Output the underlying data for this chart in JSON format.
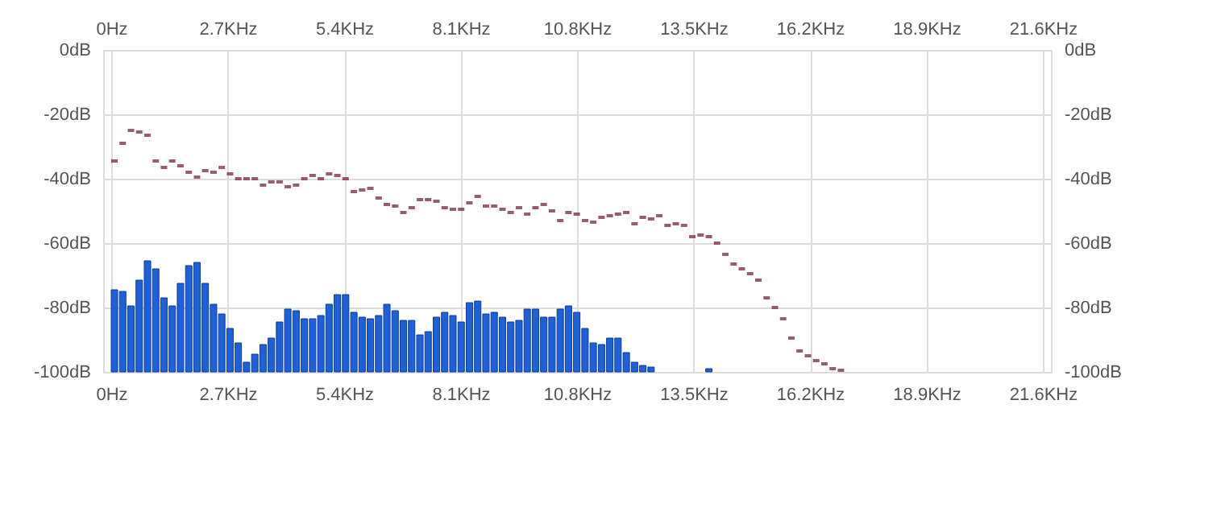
{
  "chart_data": {
    "type": "bar",
    "series": [
      {
        "color": "#1f5fd8",
        "x": [
          0.075,
          0.266,
          0.458,
          0.649,
          0.841,
          1.032,
          1.223,
          1.415,
          1.606,
          1.798,
          1.989,
          2.18,
          2.372,
          2.563,
          2.755,
          2.946,
          3.137,
          3.329,
          3.52,
          3.712,
          3.903,
          4.094,
          4.286,
          4.477,
          4.669,
          4.86,
          5.051,
          5.243,
          5.434,
          5.626,
          5.817,
          6.008,
          6.2,
          6.391,
          6.583,
          6.774,
          6.965,
          7.157,
          7.348,
          7.54,
          7.731,
          7.922,
          8.114,
          8.305,
          8.497,
          8.688,
          8.879,
          9.071,
          9.262,
          9.454,
          9.645,
          9.836,
          10.028,
          10.219,
          10.411,
          10.602,
          10.793,
          10.985,
          11.176,
          11.368,
          11.559,
          11.75,
          11.942,
          12.133,
          12.325,
          12.516,
          13.856
        ],
        "values": [
          25.5,
          25,
          20.5,
          28.5,
          34.5,
          32,
          23,
          20.5,
          27.5,
          33,
          34,
          27.5,
          21,
          18,
          13.5,
          9,
          3,
          5.5,
          8.5,
          10.5,
          15.5,
          19.5,
          19,
          16.5,
          16.5,
          17.5,
          21,
          24,
          24,
          18.5,
          17,
          16.5,
          17.5,
          21,
          19,
          16,
          16,
          11.5,
          12.5,
          17,
          18.5,
          17.5,
          15.5,
          21.5,
          22,
          18,
          18.5,
          17,
          15.5,
          16,
          19.5,
          19.5,
          17,
          17,
          19.5,
          20.5,
          18.5,
          13.5,
          9,
          8.5,
          10.5,
          10.5,
          6,
          3,
          2,
          1.5,
          1
        ],
        "base": [
          -100,
          -100,
          -100,
          -100,
          -100,
          -100,
          -100,
          -100,
          -100,
          -100,
          -100,
          -100,
          -100,
          -100,
          -100,
          -100,
          -100,
          -100,
          -100,
          -100,
          -100,
          -100,
          -100,
          -100,
          -100,
          -100,
          -100,
          -100,
          -100,
          -100,
          -100,
          -100,
          -100,
          -100,
          -100,
          -100,
          -100,
          -100,
          -100,
          -100,
          -100,
          -100,
          -100,
          -100,
          -100,
          -100,
          -100,
          -100,
          -100,
          -100,
          -100,
          -100,
          -100,
          -100,
          -100,
          -100,
          -100,
          -100,
          -100,
          -100,
          -100,
          -100,
          -100,
          -100,
          -100,
          -100,
          -100
        ]
      },
      {
        "type": "scatter",
        "color": "#6b1a2e",
        "x": [
          0.075,
          0.266,
          0.458,
          0.649,
          0.841,
          1.032,
          1.223,
          1.415,
          1.606,
          1.798,
          1.989,
          2.18,
          2.372,
          2.563,
          2.755,
          2.946,
          3.137,
          3.329,
          3.52,
          3.712,
          3.903,
          4.094,
          4.286,
          4.477,
          4.669,
          4.86,
          5.051,
          5.243,
          5.434,
          5.626,
          5.817,
          6.008,
          6.2,
          6.391,
          6.583,
          6.774,
          6.965,
          7.157,
          7.348,
          7.54,
          7.731,
          7.922,
          8.114,
          8.305,
          8.497,
          8.688,
          8.879,
          9.071,
          9.262,
          9.454,
          9.645,
          9.836,
          10.028,
          10.219,
          10.411,
          10.602,
          10.793,
          10.985,
          11.176,
          11.368,
          11.559,
          11.75,
          11.942,
          12.133,
          12.325,
          12.516,
          12.707,
          12.899,
          13.09,
          13.282,
          13.473,
          13.664,
          13.856,
          14.047,
          14.239,
          14.43,
          14.621,
          14.813,
          15.004,
          15.196,
          15.387,
          15.578,
          15.77,
          15.961,
          16.153,
          16.344,
          16.535,
          16.727,
          16.918
        ],
        "values": [
          -34.5,
          -29,
          -25,
          -25.5,
          -26.5,
          -34.5,
          -36.5,
          -34.5,
          -36,
          -38,
          -39.5,
          -37.5,
          -38,
          -36.5,
          -38.5,
          -40,
          -40,
          -40,
          -42,
          -41,
          -41,
          -42.5,
          -42,
          -40,
          -39,
          -40,
          -38.5,
          -39,
          -40,
          -44,
          -43.5,
          -43,
          -46,
          -48,
          -48.5,
          -50.5,
          -49,
          -46.5,
          -46.5,
          -47,
          -49,
          -49.5,
          -49.5,
          -47.5,
          -45.5,
          -48.5,
          -48.5,
          -49.5,
          -50.5,
          -49,
          -51,
          -49,
          -48,
          -50,
          -53,
          -50.5,
          -51,
          -53,
          -53.5,
          -52,
          -51.5,
          -51,
          -50.5,
          -54,
          -52,
          -52.5,
          -51.5,
          -54.5,
          -54,
          -54.5,
          -58,
          -57.5,
          -58,
          -60,
          -63.5,
          -66.5,
          -68,
          -69.5,
          -71.5,
          -77,
          -80,
          -83.5,
          -89.5,
          -93.5,
          -95,
          -96.5,
          -97.5,
          -99,
          -99.5
        ]
      }
    ],
    "xlim": [
      0,
      21.6
    ],
    "xticks": [
      {
        "value": 0,
        "label": "0Hz"
      },
      {
        "value": 2.7,
        "label": "2.7KHz"
      },
      {
        "value": 5.4,
        "label": "5.4KHz"
      },
      {
        "value": 8.1,
        "label": "8.1KHz"
      },
      {
        "value": 10.8,
        "label": "10.8KHz"
      },
      {
        "value": 13.5,
        "label": "13.5KHz"
      },
      {
        "value": 16.2,
        "label": "16.2KHz"
      },
      {
        "value": 18.9,
        "label": "18.9KHz"
      },
      {
        "value": 21.6,
        "label": "21.6KHz"
      }
    ],
    "x2lim": [
      0,
      21.6
    ],
    "x2ticks": [
      {
        "value": 0,
        "label": "0Hz"
      },
      {
        "value": 2.7,
        "label": "2.7KHz"
      },
      {
        "value": 5.4,
        "label": "5.4KHz"
      },
      {
        "value": 8.1,
        "label": "8.1KHz"
      },
      {
        "value": 10.8,
        "label": "10.8KHz"
      },
      {
        "value": 13.5,
        "label": "13.5KHz"
      },
      {
        "value": 16.2,
        "label": "16.2KHz"
      },
      {
        "value": 18.9,
        "label": "18.9KHz"
      },
      {
        "value": 21.6,
        "label": "21.6KHz"
      }
    ],
    "ylim": [
      -100,
      0
    ],
    "yticks": [
      {
        "value": -100,
        "label": "-100dB"
      },
      {
        "value": -80,
        "label": "-80dB"
      },
      {
        "value": -60,
        "label": "-60dB"
      },
      {
        "value": -40,
        "label": "-40dB"
      },
      {
        "value": -20,
        "label": "-20dB"
      },
      {
        "value": 0,
        "label": "0dB"
      }
    ],
    "y2lim": [
      -100,
      0
    ],
    "y2ticks": [
      {
        "value": -100,
        "label": "-100dB"
      },
      {
        "value": -80,
        "label": "-80dB"
      },
      {
        "value": -60,
        "label": "-60dB"
      },
      {
        "value": -40,
        "label": "-40dB"
      },
      {
        "value": -20,
        "label": "-20dB"
      },
      {
        "value": 0,
        "label": "0dB"
      }
    ],
    "grid": true
  }
}
